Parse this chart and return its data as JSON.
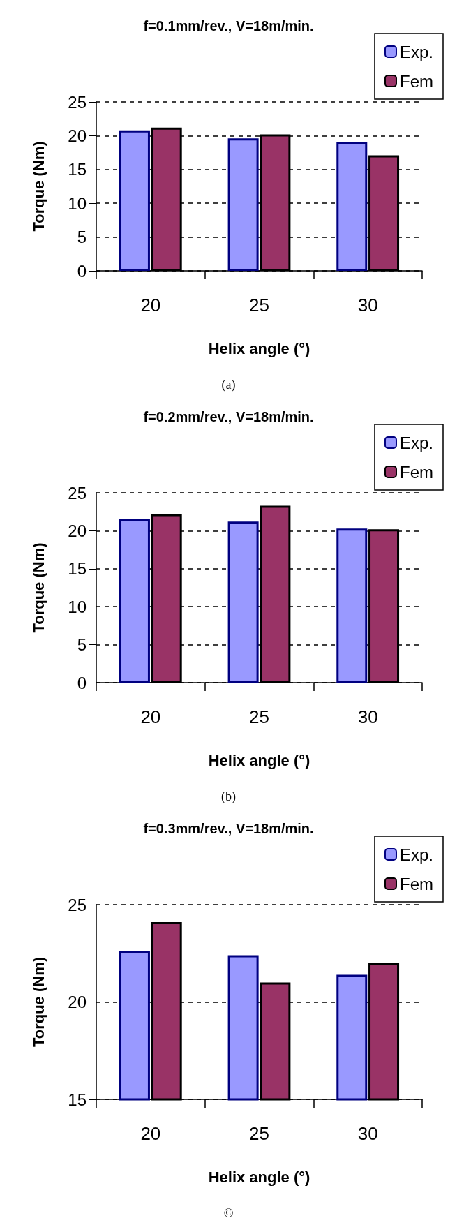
{
  "chart_data": [
    {
      "type": "bar",
      "title": "f=0.1mm/rev., V=18m/min.",
      "xlabel": "Helix angle (°)",
      "ylabel": "Torque (Nm)",
      "categories": [
        "20",
        "25",
        "30"
      ],
      "series": [
        {
          "name": "Exp.",
          "color": "#9999ff",
          "values": [
            20.8,
            19.6,
            19.0
          ]
        },
        {
          "name": "Fem",
          "color": "#993366",
          "values": [
            21.2,
            20.2,
            17.1
          ]
        }
      ],
      "ylim": [
        0,
        25
      ],
      "yticks": [
        0,
        5,
        10,
        15,
        20,
        25
      ],
      "grid": "y",
      "legend": "top right",
      "annotations": [
        "(a)"
      ]
    },
    {
      "type": "bar",
      "title": "f=0.2mm/rev., V=18m/min.",
      "xlabel": "Helix angle (°)",
      "ylabel": "Torque (Nm)",
      "categories": [
        "20",
        "25",
        "30"
      ],
      "series": [
        {
          "name": "Exp.",
          "color": "#9999ff",
          "values": [
            21.6,
            21.2,
            20.3
          ]
        },
        {
          "name": "Fem",
          "color": "#993366",
          "values": [
            22.2,
            23.3,
            20.2
          ]
        }
      ],
      "ylim": [
        0,
        25
      ],
      "yticks": [
        0,
        5,
        10,
        15,
        20,
        25
      ],
      "grid": "y",
      "legend": "top right",
      "annotations": [
        "(b)"
      ]
    },
    {
      "type": "bar",
      "title": "f=0.3mm/rev., V=18m/min.",
      "xlabel": "Helix angle (°)",
      "ylabel": "Torque (Nm)",
      "categories": [
        "20",
        "25",
        "30"
      ],
      "series": [
        {
          "name": "Exp.",
          "color": "#9999ff",
          "values": [
            22.6,
            22.4,
            21.4
          ]
        },
        {
          "name": "Fem",
          "color": "#993366",
          "values": [
            24.1,
            21.0,
            22.0
          ]
        }
      ],
      "ylim": [
        15,
        25
      ],
      "yticks": [
        15,
        20,
        25
      ],
      "grid": "y",
      "legend": "top right",
      "annotations": [
        "©"
      ]
    }
  ]
}
